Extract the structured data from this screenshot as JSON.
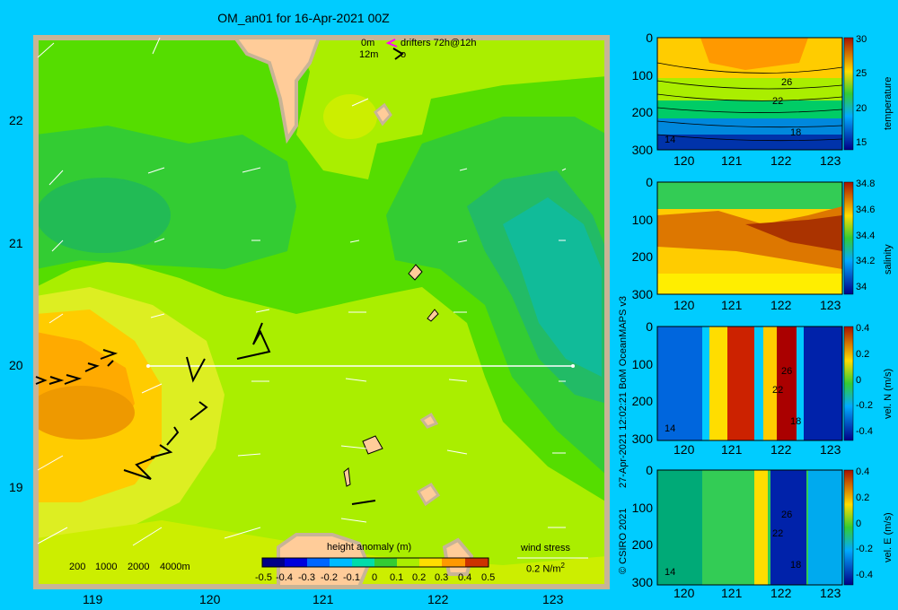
{
  "title": "OM_an01 for 16-Apr-2021 00Z",
  "map": {
    "lon_ticks": [
      "119",
      "120",
      "121",
      "122",
      "123"
    ],
    "lat_ticks": [
      "22",
      "21",
      "20",
      "19"
    ],
    "depth_legend": [
      "200",
      "1000",
      "2000",
      "4000m"
    ],
    "drifter_legend": {
      "line1_left": "0m",
      "line1_right": "drifters 72h@12h",
      "line2_left": "12m",
      "line2_right": "o"
    },
    "colorbar": {
      "title": "height anomaly (m)",
      "ticks": [
        "-0.5",
        "-0.4",
        "-0.3",
        "-0.2",
        "-0.1",
        "0",
        "0.1",
        "0.2",
        "0.3",
        "0.4",
        "0.5"
      ]
    },
    "wind_stress": {
      "label": "wind stress",
      "scale": "0.2 N/m",
      "scale_sup": "2"
    }
  },
  "credits": {
    "line1": "27-Apr-2021 12:02:21 BoM OceanMAPS v3",
    "line2": "© CSIRO 2021"
  },
  "panels": [
    {
      "name": "temperature",
      "x_ticks": [
        "120",
        "121",
        "122",
        "123"
      ],
      "y_ticks": [
        "0",
        "100",
        "200",
        "300"
      ],
      "cbar_ticks": [
        "30",
        "25",
        "20",
        "15"
      ],
      "contour_labels": [
        "26",
        "22",
        "18",
        "14"
      ]
    },
    {
      "name": "salinity",
      "x_ticks": [
        "120",
        "121",
        "122",
        "123"
      ],
      "y_ticks": [
        "0",
        "100",
        "200",
        "300"
      ],
      "cbar_ticks": [
        "34.8",
        "34.6",
        "34.4",
        "34.2",
        "34"
      ],
      "contour_labels": []
    },
    {
      "name": "vel. N (m/s)",
      "x_ticks": [
        "120",
        "121",
        "122",
        "123"
      ],
      "y_ticks": [
        "0",
        "100",
        "200",
        "300"
      ],
      "cbar_ticks": [
        "0.4",
        "0.2",
        "0",
        "-0.2",
        "-0.4"
      ],
      "contour_labels": [
        "26",
        "22",
        "18",
        "14"
      ]
    },
    {
      "name": "vel. E (m/s)",
      "x_ticks": [
        "120",
        "121",
        "122",
        "123"
      ],
      "y_ticks": [
        "0",
        "100",
        "200",
        "300"
      ],
      "cbar_ticks": [
        "0.4",
        "0.2",
        "0",
        "-0.2",
        "-0.4"
      ],
      "contour_labels": [
        "26",
        "22",
        "18",
        "14"
      ]
    }
  ],
  "colors": {
    "background": "#00ccff",
    "land": "#ffcc99",
    "shelf": "#c8b496"
  }
}
